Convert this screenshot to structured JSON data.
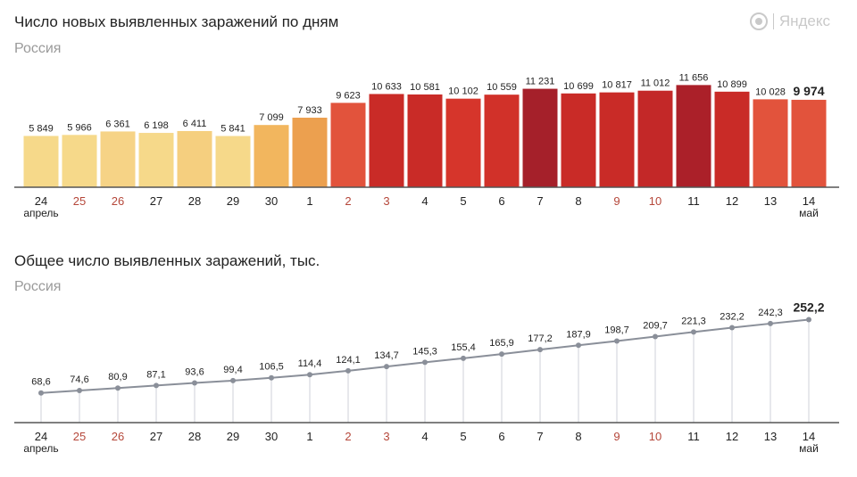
{
  "brand": {
    "name": "Яндекс",
    "icon": "yandex-logo-icon"
  },
  "chart_data": [
    {
      "type": "bar",
      "title": "Число новых выявленных заражений по дням",
      "subtitle": "Россия",
      "categories": [
        "24",
        "25",
        "26",
        "27",
        "28",
        "29",
        "30",
        "1",
        "2",
        "3",
        "4",
        "5",
        "6",
        "7",
        "8",
        "9",
        "10",
        "11",
        "12",
        "13",
        "14"
      ],
      "category_colors": [
        "#222222",
        "#b5473a",
        "#b5473a",
        "#222222",
        "#222222",
        "#222222",
        "#222222",
        "#222222",
        "#b5473a",
        "#b5473a",
        "#222222",
        "#222222",
        "#222222",
        "#222222",
        "#222222",
        "#b5473a",
        "#b5473a",
        "#222222",
        "#222222",
        "#222222",
        "#222222"
      ],
      "month_labels": [
        {
          "index": 0,
          "text": "апрель"
        },
        {
          "index": 20,
          "text": "май"
        }
      ],
      "values": [
        5849,
        5966,
        6361,
        6198,
        6411,
        5841,
        7099,
        7933,
        9623,
        10633,
        10581,
        10102,
        10559,
        11231,
        10699,
        10817,
        11012,
        11656,
        10899,
        10028,
        9974
      ],
      "value_labels": [
        "5 849",
        "5 966",
        "6 361",
        "6 198",
        "6 411",
        "5 841",
        "7 099",
        "7 933",
        "9 623",
        "10 633",
        "10 581",
        "10 102",
        "10 559",
        "11 231",
        "10 699",
        "10 817",
        "11 012",
        "11 656",
        "10 899",
        "10 028",
        "9 974"
      ],
      "bar_colors": [
        "#f6d98a",
        "#f6d98a",
        "#f6d386",
        "#f6d98a",
        "#f5cf7f",
        "#f6d98a",
        "#f2b65e",
        "#eca04f",
        "#e2533c",
        "#c92b27",
        "#c92b27",
        "#d6352b",
        "#d13129",
        "#a5202a",
        "#c92b27",
        "#c92b27",
        "#c32828",
        "#ab2029",
        "#c92b27",
        "#e2533c",
        "#e2533c"
      ],
      "highlight_last": true,
      "ylim": [
        0,
        12000
      ]
    },
    {
      "type": "line",
      "title": "Общее число выявленных заражений, тыс.",
      "subtitle": "Россия",
      "categories": [
        "24",
        "25",
        "26",
        "27",
        "28",
        "29",
        "30",
        "1",
        "2",
        "3",
        "4",
        "5",
        "6",
        "7",
        "8",
        "9",
        "10",
        "11",
        "12",
        "13",
        "14"
      ],
      "category_colors": [
        "#222222",
        "#b5473a",
        "#b5473a",
        "#222222",
        "#222222",
        "#222222",
        "#222222",
        "#222222",
        "#b5473a",
        "#b5473a",
        "#222222",
        "#222222",
        "#222222",
        "#222222",
        "#222222",
        "#b5473a",
        "#b5473a",
        "#222222",
        "#222222",
        "#222222",
        "#222222"
      ],
      "month_labels": [
        {
          "index": 0,
          "text": "апрель"
        },
        {
          "index": 20,
          "text": "май"
        }
      ],
      "values": [
        68.6,
        74.6,
        80.9,
        87.1,
        93.6,
        99.4,
        106.5,
        114.4,
        124.1,
        134.7,
        145.3,
        155.4,
        165.9,
        177.2,
        187.9,
        198.7,
        209.7,
        221.3,
        232.2,
        242.3,
        252.2
      ],
      "value_labels": [
        "68,6",
        "74,6",
        "80,9",
        "87,1",
        "93,6",
        "99,4",
        "106,5",
        "114,4",
        "124,1",
        "134,7",
        "145,3",
        "155,4",
        "165,9",
        "177,2",
        "187,9",
        "198,7",
        "209,7",
        "221,3",
        "232,2",
        "242,3",
        "252,2"
      ],
      "line_color": "#8a8f99",
      "highlight_last": true,
      "ylim": [
        0,
        260
      ]
    }
  ]
}
